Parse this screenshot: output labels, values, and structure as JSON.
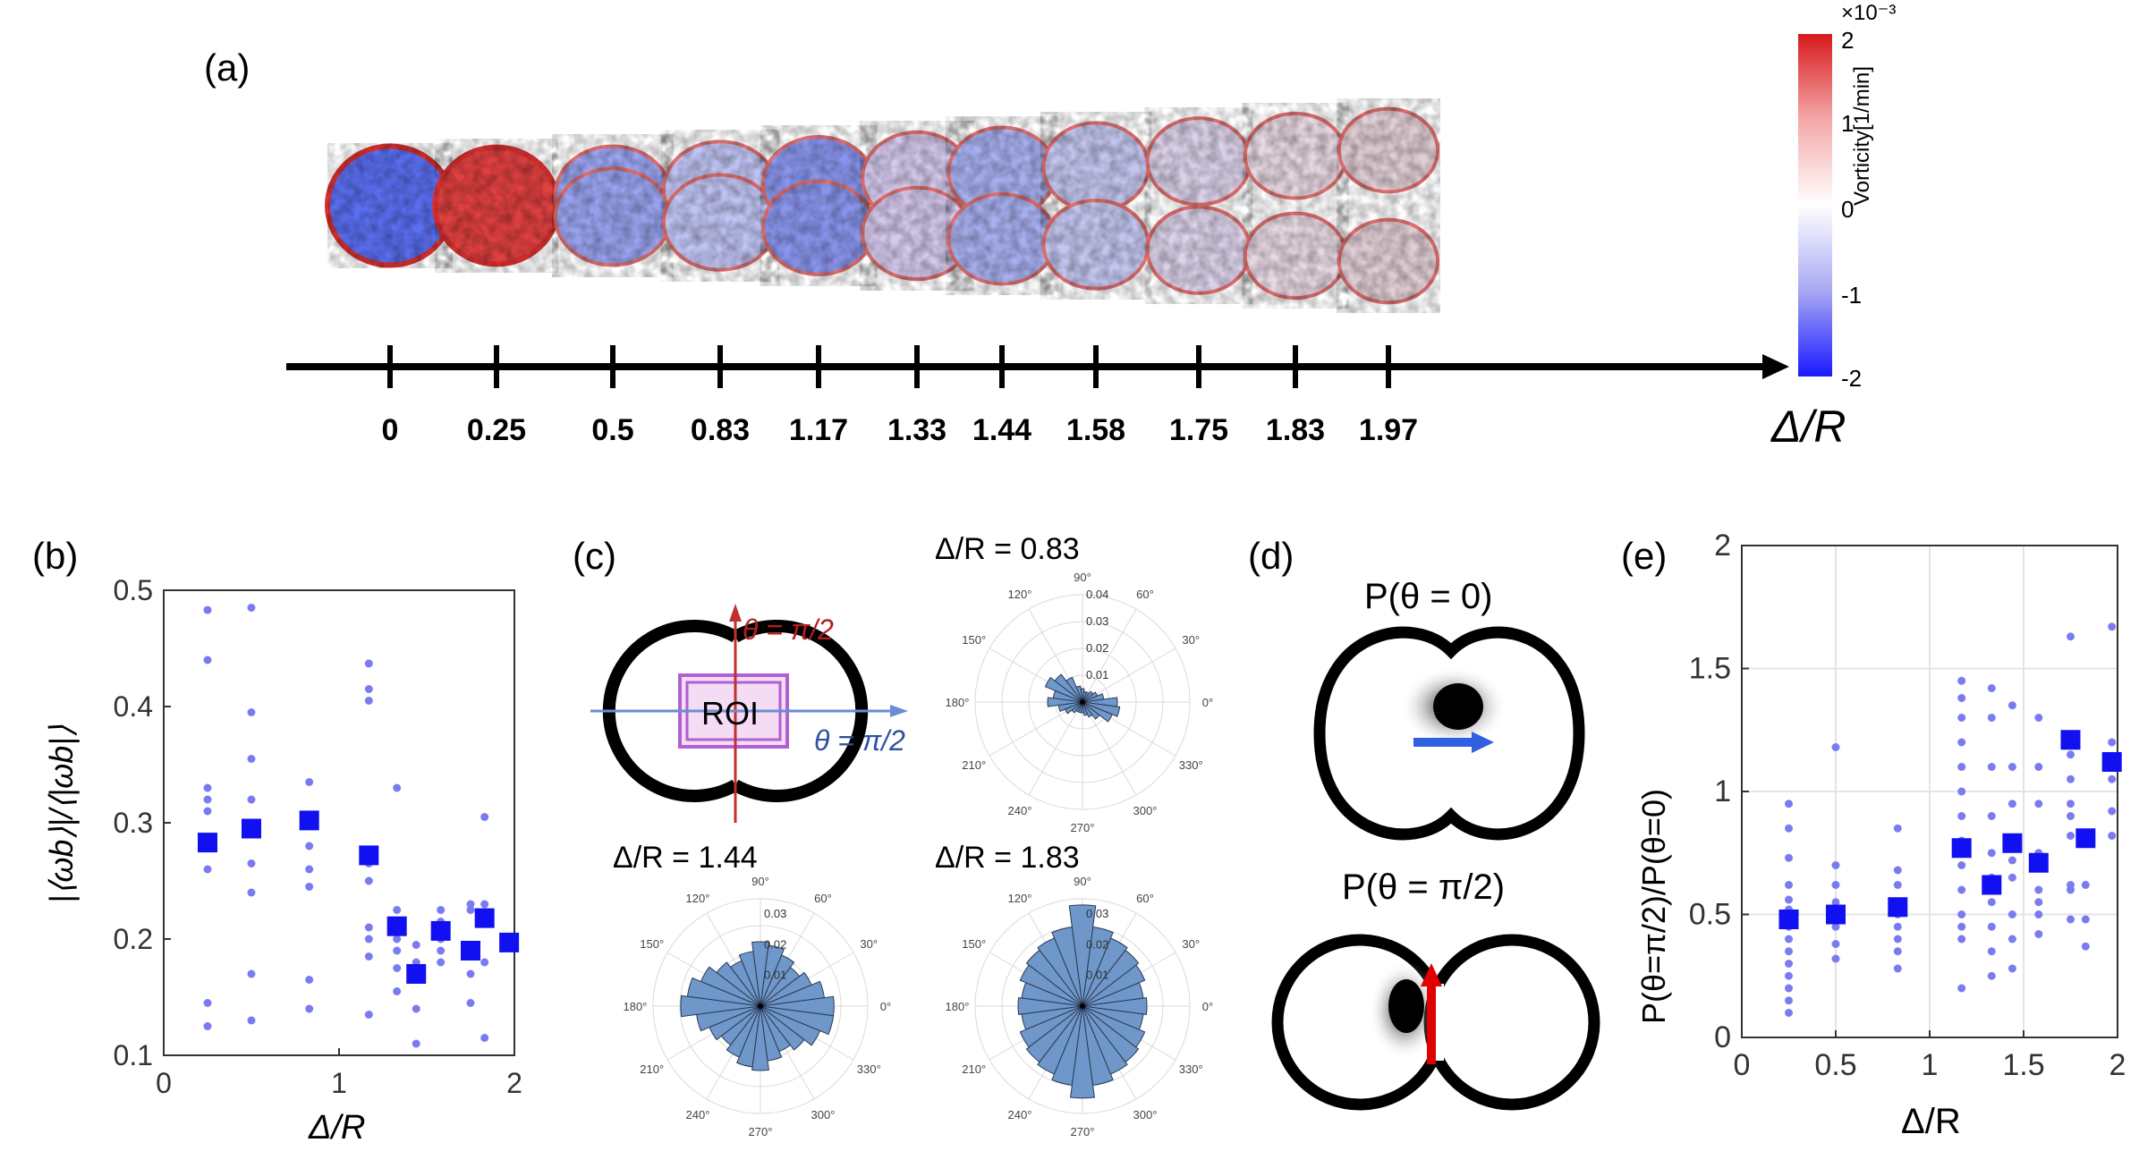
{
  "panels": {
    "a": {
      "label": "(a)",
      "ticks": [
        "0",
        "0.25",
        "0.5",
        "0.83",
        "1.17",
        "1.33",
        "1.44",
        "1.58",
        "1.75",
        "1.83",
        "1.97"
      ],
      "axis_label": "Δ/R",
      "colorbar": {
        "exponent": "×10⁻³",
        "ticks": [
          "2",
          "1",
          "0",
          "-1",
          "-2"
        ],
        "label": "Vorticity[1/min]",
        "colors": {
          "high": "#d7191c",
          "mid": "#ffffff",
          "low": "#1a1aff"
        }
      }
    },
    "b": {
      "label": "(b)",
      "xlabel": "Δ/R",
      "ylabel": "|⟨ωb⟩|/⟨|ωb|⟩",
      "xticks": [
        "0",
        "1",
        "2"
      ],
      "yticks": [
        "0.1",
        "0.2",
        "0.3",
        "0.4",
        "0.5"
      ]
    },
    "c": {
      "label": "(c)",
      "roi_label": "ROI",
      "theta_up": "θ = π/2",
      "theta_right": "θ = π/2",
      "polar_titles": [
        "Δ/R = 0.83",
        "Δ/R = 1.44",
        "Δ/R = 1.83"
      ],
      "angle_labels": [
        "90°",
        "60°",
        "30°",
        "0°",
        "330°",
        "300°",
        "270°",
        "240°",
        "210°",
        "180°",
        "150°",
        "120°"
      ],
      "r_labels_1": [
        "0.01",
        "0.02",
        "0.03",
        "0.04"
      ],
      "r_labels_2": [
        "0.01",
        "0.02",
        "0.03"
      ],
      "r_labels_3": [
        "0.01",
        "0.02",
        "0.03"
      ]
    },
    "d": {
      "label": "(d)",
      "title_top": "P(θ = 0)",
      "title_bottom": "P(θ = π/2)"
    },
    "e": {
      "label": "(e)",
      "xlabel": "Δ/R",
      "ylabel": "P(θ=π/2)/P(θ=0)",
      "xticks": [
        "0",
        "0.5",
        "1",
        "1.5",
        "2"
      ],
      "yticks": [
        "0",
        "0.5",
        "1",
        "1.5",
        "2"
      ]
    }
  },
  "chart_data": [
    {
      "type": "scatter",
      "id": "b",
      "xlabel": "Δ/R",
      "ylabel": "|⟨ωb⟩|/⟨|ωb|⟩",
      "xlim": [
        0,
        2
      ],
      "ylim": [
        0.1,
        0.5
      ],
      "series": [
        {
          "name": "individual",
          "marker": "dot",
          "color": "#7b7bf0",
          "points": [
            [
              0.25,
              0.483
            ],
            [
              0.25,
              0.44
            ],
            [
              0.25,
              0.33
            ],
            [
              0.25,
              0.32
            ],
            [
              0.25,
              0.31
            ],
            [
              0.25,
              0.28
            ],
            [
              0.25,
              0.26
            ],
            [
              0.25,
              0.145
            ],
            [
              0.25,
              0.125
            ],
            [
              0.5,
              0.485
            ],
            [
              0.5,
              0.395
            ],
            [
              0.5,
              0.355
            ],
            [
              0.5,
              0.32
            ],
            [
              0.5,
              0.265
            ],
            [
              0.5,
              0.24
            ],
            [
              0.5,
              0.17
            ],
            [
              0.5,
              0.13
            ],
            [
              0.83,
              0.335
            ],
            [
              0.83,
              0.305
            ],
            [
              0.83,
              0.28
            ],
            [
              0.83,
              0.26
            ],
            [
              0.83,
              0.245
            ],
            [
              0.83,
              0.165
            ],
            [
              0.83,
              0.14
            ],
            [
              1.17,
              0.437
            ],
            [
              1.17,
              0.415
            ],
            [
              1.17,
              0.405
            ],
            [
              1.17,
              0.265
            ],
            [
              1.17,
              0.25
            ],
            [
              1.17,
              0.21
            ],
            [
              1.17,
              0.2
            ],
            [
              1.17,
              0.185
            ],
            [
              1.17,
              0.135
            ],
            [
              1.33,
              0.33
            ],
            [
              1.33,
              0.225
            ],
            [
              1.33,
              0.2
            ],
            [
              1.33,
              0.19
            ],
            [
              1.33,
              0.175
            ],
            [
              1.33,
              0.155
            ],
            [
              1.44,
              0.195
            ],
            [
              1.44,
              0.18
            ],
            [
              1.44,
              0.14
            ],
            [
              1.44,
              0.11
            ],
            [
              1.58,
              0.225
            ],
            [
              1.58,
              0.215
            ],
            [
              1.58,
              0.2
            ],
            [
              1.58,
              0.19
            ],
            [
              1.58,
              0.18
            ],
            [
              1.75,
              0.23
            ],
            [
              1.75,
              0.225
            ],
            [
              1.75,
              0.195
            ],
            [
              1.75,
              0.17
            ],
            [
              1.75,
              0.145
            ],
            [
              1.83,
              0.305
            ],
            [
              1.83,
              0.23
            ],
            [
              1.83,
              0.18
            ],
            [
              1.83,
              0.115
            ]
          ]
        },
        {
          "name": "mean",
          "marker": "square",
          "color": "#1010f0",
          "points": [
            [
              0.25,
              0.283
            ],
            [
              0.5,
              0.295
            ],
            [
              0.83,
              0.302
            ],
            [
              1.17,
              0.272
            ],
            [
              1.33,
              0.211
            ],
            [
              1.44,
              0.17
            ],
            [
              1.58,
              0.207
            ],
            [
              1.75,
              0.19
            ],
            [
              1.83,
              0.218
            ],
            [
              1.97,
              0.197
            ]
          ]
        }
      ]
    },
    {
      "type": "scatter",
      "id": "e",
      "xlabel": "Δ/R",
      "ylabel": "P(θ=π/2)/P(θ=0)",
      "xlim": [
        0,
        2
      ],
      "ylim": [
        0,
        2
      ],
      "grid": true,
      "series": [
        {
          "name": "individual",
          "marker": "dot",
          "color": "#7b7bf0",
          "points": [
            [
              0.25,
              0.95
            ],
            [
              0.25,
              0.85
            ],
            [
              0.25,
              0.73
            ],
            [
              0.25,
              0.62
            ],
            [
              0.25,
              0.56
            ],
            [
              0.25,
              0.52
            ],
            [
              0.25,
              0.45
            ],
            [
              0.25,
              0.4
            ],
            [
              0.25,
              0.35
            ],
            [
              0.25,
              0.3
            ],
            [
              0.25,
              0.25
            ],
            [
              0.25,
              0.2
            ],
            [
              0.25,
              0.15
            ],
            [
              0.25,
              0.1
            ],
            [
              0.5,
              1.18
            ],
            [
              0.5,
              0.7
            ],
            [
              0.5,
              0.62
            ],
            [
              0.5,
              0.55
            ],
            [
              0.5,
              0.5
            ],
            [
              0.5,
              0.45
            ],
            [
              0.5,
              0.38
            ],
            [
              0.5,
              0.32
            ],
            [
              0.83,
              0.85
            ],
            [
              0.83,
              0.68
            ],
            [
              0.83,
              0.62
            ],
            [
              0.83,
              0.55
            ],
            [
              0.83,
              0.5
            ],
            [
              0.83,
              0.45
            ],
            [
              0.83,
              0.4
            ],
            [
              0.83,
              0.35
            ],
            [
              0.83,
              0.28
            ],
            [
              1.17,
              1.45
            ],
            [
              1.17,
              1.38
            ],
            [
              1.17,
              1.3
            ],
            [
              1.17,
              1.2
            ],
            [
              1.17,
              1.1
            ],
            [
              1.17,
              1.0
            ],
            [
              1.17,
              0.9
            ],
            [
              1.17,
              0.8
            ],
            [
              1.17,
              0.7
            ],
            [
              1.17,
              0.6
            ],
            [
              1.17,
              0.5
            ],
            [
              1.17,
              0.45
            ],
            [
              1.17,
              0.4
            ],
            [
              1.17,
              0.2
            ],
            [
              1.33,
              1.42
            ],
            [
              1.33,
              1.3
            ],
            [
              1.33,
              1.1
            ],
            [
              1.33,
              0.9
            ],
            [
              1.33,
              0.75
            ],
            [
              1.33,
              0.65
            ],
            [
              1.33,
              0.55
            ],
            [
              1.33,
              0.45
            ],
            [
              1.33,
              0.35
            ],
            [
              1.33,
              0.25
            ],
            [
              1.44,
              1.35
            ],
            [
              1.44,
              1.1
            ],
            [
              1.44,
              0.95
            ],
            [
              1.44,
              0.72
            ],
            [
              1.44,
              0.65
            ],
            [
              1.44,
              0.5
            ],
            [
              1.44,
              0.4
            ],
            [
              1.44,
              0.28
            ],
            [
              1.58,
              1.3
            ],
            [
              1.58,
              1.1
            ],
            [
              1.58,
              0.95
            ],
            [
              1.58,
              0.75
            ],
            [
              1.58,
              0.6
            ],
            [
              1.58,
              0.55
            ],
            [
              1.58,
              0.5
            ],
            [
              1.58,
              0.42
            ],
            [
              1.75,
              1.63
            ],
            [
              1.75,
              1.15
            ],
            [
              1.75,
              1.05
            ],
            [
              1.75,
              0.95
            ],
            [
              1.75,
              0.9
            ],
            [
              1.75,
              0.82
            ],
            [
              1.75,
              0.62
            ],
            [
              1.75,
              0.6
            ],
            [
              1.75,
              0.48
            ],
            [
              1.83,
              0.8
            ],
            [
              1.83,
              0.62
            ],
            [
              1.83,
              0.48
            ],
            [
              1.83,
              0.37
            ],
            [
              1.97,
              1.67
            ],
            [
              1.97,
              1.2
            ],
            [
              1.97,
              1.05
            ],
            [
              1.97,
              0.92
            ],
            [
              1.97,
              0.82
            ]
          ]
        },
        {
          "name": "mean",
          "marker": "square",
          "color": "#1010f0",
          "points": [
            [
              0.25,
              0.48
            ],
            [
              0.5,
              0.5
            ],
            [
              0.83,
              0.53
            ],
            [
              1.17,
              0.77
            ],
            [
              1.33,
              0.62
            ],
            [
              1.44,
              0.79
            ],
            [
              1.58,
              0.71
            ],
            [
              1.75,
              1.21
            ],
            [
              1.83,
              0.81
            ],
            [
              1.97,
              1.12
            ]
          ]
        }
      ]
    },
    {
      "type": "polar-histogram",
      "id": "c-0.83",
      "title": "Δ/R = 0.83",
      "rmax": 0.04,
      "sector_deg": 15,
      "values": [
        0.013,
        0.008,
        0.006,
        0.005,
        0.004,
        0.004,
        0.005,
        0.006,
        0.01,
        0.013,
        0.015,
        0.011,
        0.013,
        0.009,
        0.007,
        0.005,
        0.004,
        0.004,
        0.004,
        0.005,
        0.006,
        0.008,
        0.012,
        0.014
      ]
    },
    {
      "type": "polar-histogram",
      "id": "c-1.44",
      "title": "Δ/R = 1.44",
      "rmax": 0.035,
      "sector_deg": 15,
      "values": [
        0.024,
        0.021,
        0.018,
        0.016,
        0.018,
        0.02,
        0.021,
        0.018,
        0.016,
        0.018,
        0.021,
        0.024,
        0.026,
        0.021,
        0.018,
        0.016,
        0.018,
        0.02,
        0.021,
        0.018,
        0.016,
        0.018,
        0.021,
        0.024
      ]
    },
    {
      "type": "polar-histogram",
      "id": "c-1.83",
      "title": "Δ/R = 1.83",
      "rmax": 0.035,
      "sector_deg": 15,
      "values": [
        0.021,
        0.02,
        0.022,
        0.023,
        0.024,
        0.026,
        0.033,
        0.026,
        0.024,
        0.023,
        0.022,
        0.02,
        0.021,
        0.02,
        0.022,
        0.023,
        0.024,
        0.026,
        0.03,
        0.026,
        0.024,
        0.023,
        0.022,
        0.02
      ]
    }
  ]
}
